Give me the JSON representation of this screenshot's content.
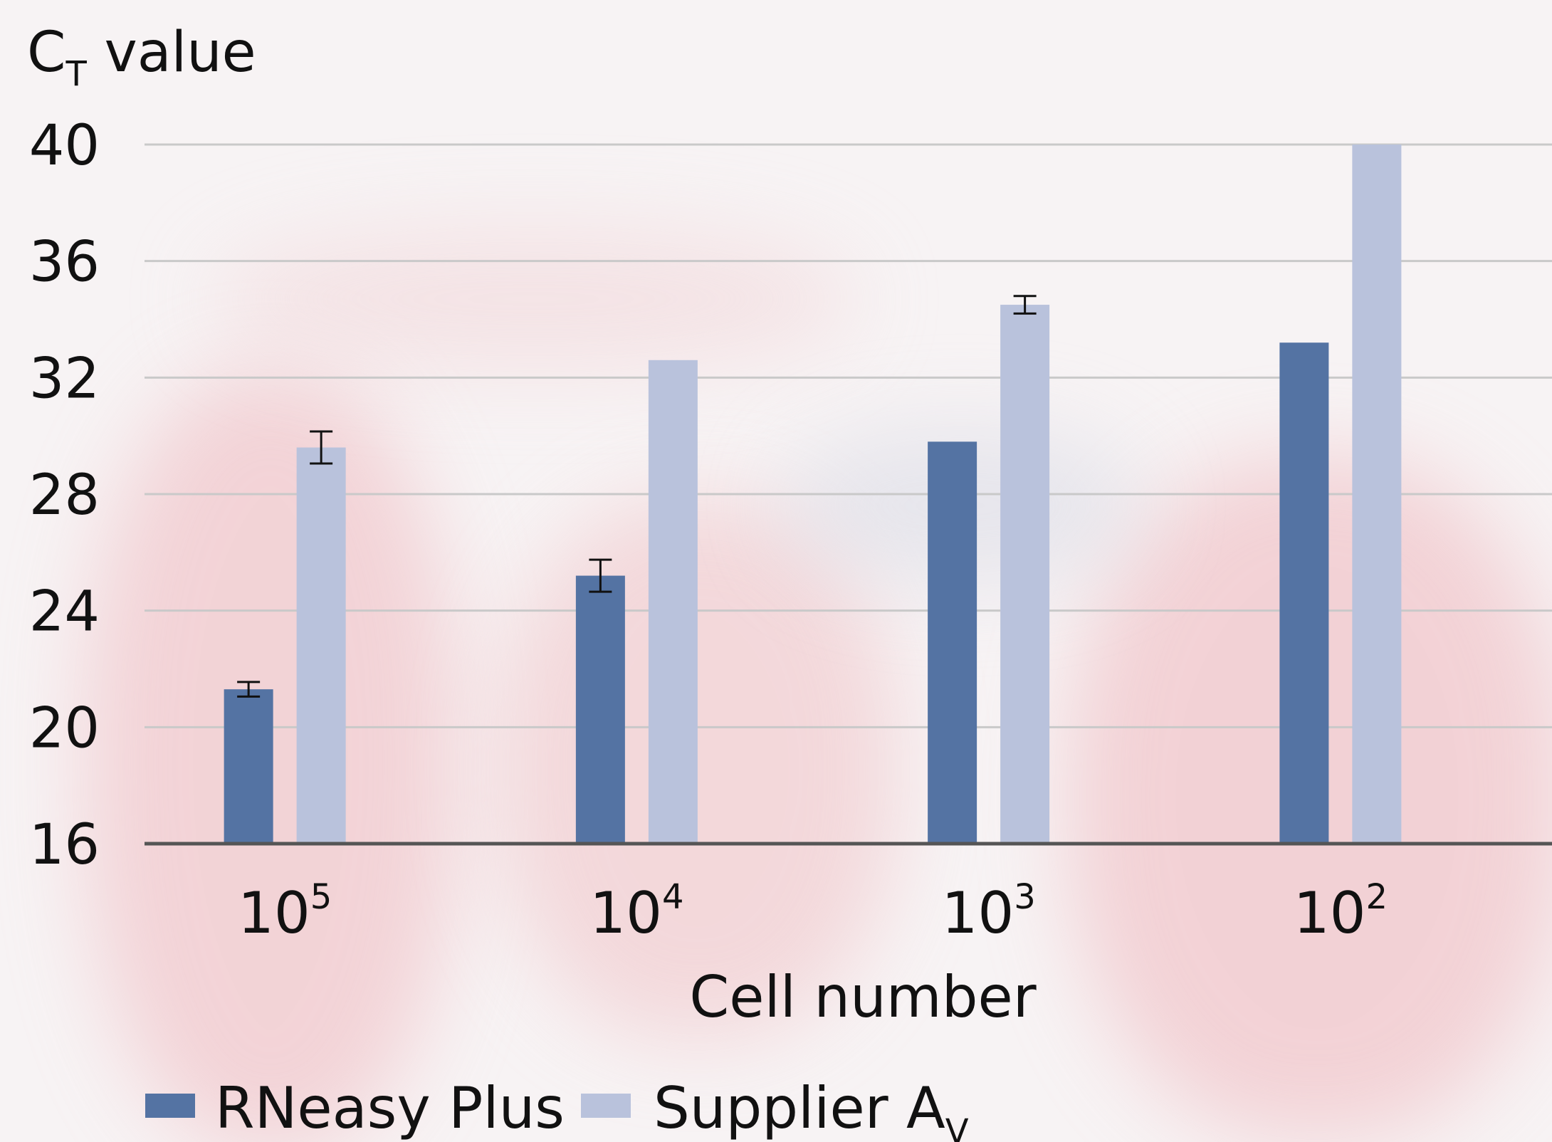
{
  "chart_data": {
    "type": "bar",
    "title": "",
    "ylabel": {
      "main": "C",
      "sub": "T",
      "rest": " value"
    },
    "xlabel": "Cell number",
    "ylim": [
      16,
      40
    ],
    "yticks": [
      16,
      20,
      24,
      28,
      32,
      36,
      40
    ],
    "categories": [
      {
        "base": "10",
        "exp": "5"
      },
      {
        "base": "10",
        "exp": "4"
      },
      {
        "base": "10",
        "exp": "3"
      },
      {
        "base": "10",
        "exp": "2"
      }
    ],
    "series": [
      {
        "name": "RNeasy Plus",
        "color": "#5473a3",
        "values": [
          21.3,
          25.2,
          29.8,
          33.2
        ],
        "errors": [
          0.25,
          0.55,
          null,
          null
        ]
      },
      {
        "name": "Supplier A",
        "name_sub": "V",
        "color": "#b9c2dc",
        "values": [
          29.6,
          32.6,
          34.5,
          40
        ],
        "errors": [
          0.55,
          null,
          0.3,
          null
        ]
      }
    ],
    "grid": true,
    "legend": "bottom-left"
  }
}
